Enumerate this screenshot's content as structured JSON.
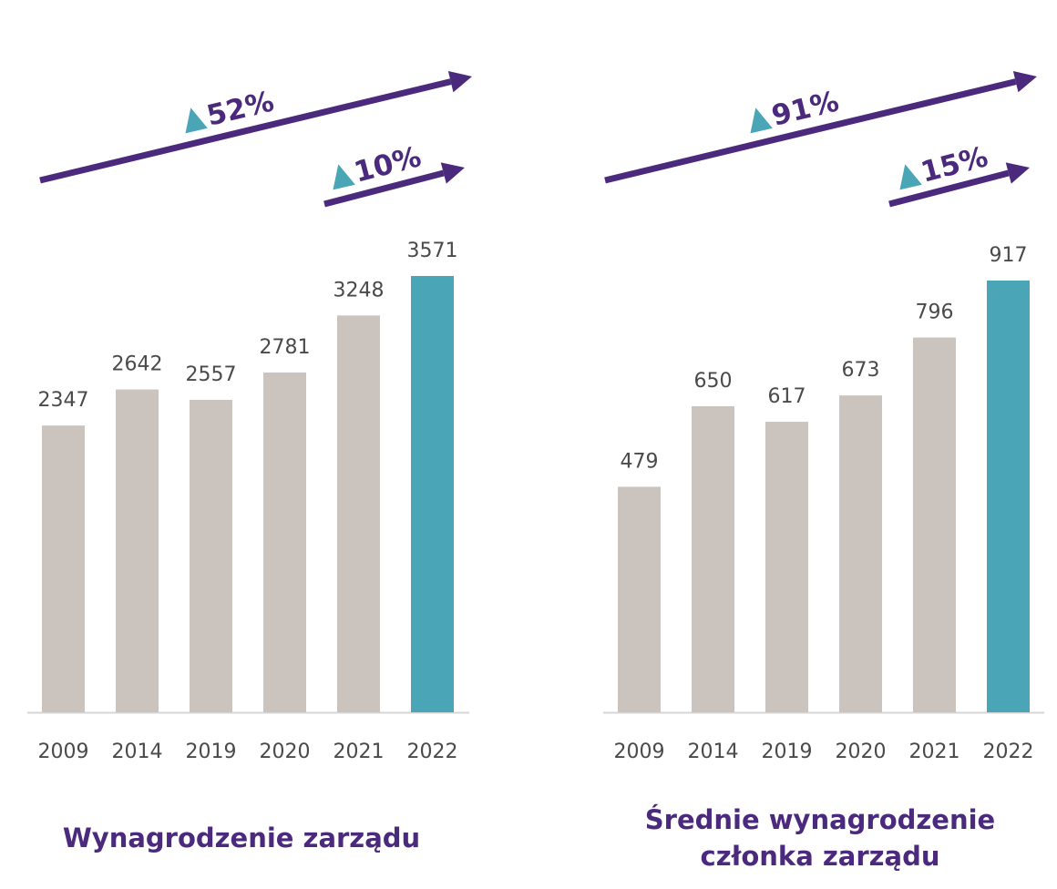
{
  "colors": {
    "bar": "#cbc4be",
    "highlight": "#4aa5b6",
    "arrow": "#4b2a7d",
    "triangle": "#4aa5b6",
    "text": "#4a4a4a",
    "title": "#4b2a7d"
  },
  "chart_data": [
    {
      "type": "bar",
      "title": "Wynagrodzenie zarządu",
      "categories": [
        "2009",
        "2014",
        "2019",
        "2020",
        "2021",
        "2022"
      ],
      "values": [
        2347,
        2642,
        2557,
        2781,
        3248,
        3571
      ],
      "value_labels": [
        "2347",
        "2642",
        "2557",
        "2781",
        "3248",
        "3571"
      ],
      "highlight_category": "2022",
      "ylim": [
        0,
        3571
      ],
      "grid": false,
      "annotations": [
        {
          "label": "52%",
          "icon": "up-triangle-icon",
          "span": [
            "2009",
            "2022"
          ]
        },
        {
          "label": "10%",
          "icon": "up-triangle-icon",
          "span": [
            "2021",
            "2022"
          ]
        }
      ]
    },
    {
      "type": "bar",
      "title": "Średnie wynagrodzenie członka zarządu",
      "title_lines": [
        "Średnie wynagrodzenie",
        "członka zarządu"
      ],
      "categories": [
        "2009",
        "2014",
        "2019",
        "2020",
        "2021",
        "2022"
      ],
      "values": [
        479,
        650,
        617,
        673,
        796,
        917
      ],
      "value_labels": [
        "479",
        "650",
        "617",
        "673",
        "796",
        "917"
      ],
      "highlight_category": "2022",
      "ylim": [
        0,
        917
      ],
      "grid": false,
      "annotations": [
        {
          "label": "91%",
          "icon": "up-triangle-icon",
          "span": [
            "2009",
            "2022"
          ]
        },
        {
          "label": "15%",
          "icon": "up-triangle-icon",
          "span": [
            "2021",
            "2022"
          ]
        }
      ]
    }
  ]
}
